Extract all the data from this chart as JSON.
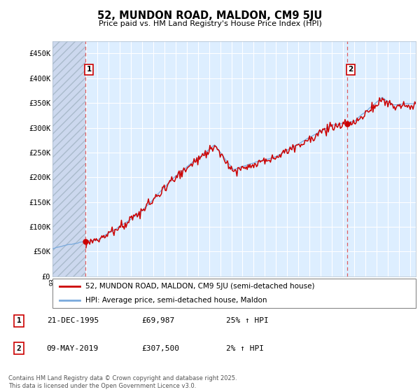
{
  "title": "52, MUNDON ROAD, MALDON, CM9 5JU",
  "subtitle": "Price paid vs. HM Land Registry's House Price Index (HPI)",
  "ylim": [
    0,
    475000
  ],
  "yticks": [
    0,
    50000,
    100000,
    150000,
    200000,
    250000,
    300000,
    350000,
    400000,
    450000
  ],
  "ytick_labels": [
    "£0",
    "£50K",
    "£100K",
    "£150K",
    "£200K",
    "£250K",
    "£300K",
    "£350K",
    "£400K",
    "£450K"
  ],
  "price_paid_color": "#cc0000",
  "hpi_color": "#7aaadd",
  "marker_color": "#cc0000",
  "vline_color": "#dd4444",
  "transaction1_date": 1995.97,
  "transaction1_price": 69987,
  "transaction2_date": 2019.36,
  "transaction2_price": 307500,
  "legend_line1": "52, MUNDON ROAD, MALDON, CM9 5JU (semi-detached house)",
  "legend_line2": "HPI: Average price, semi-detached house, Maldon",
  "annotation1_date": "21-DEC-1995",
  "annotation1_price": "£69,987",
  "annotation1_hpi": "25% ↑ HPI",
  "annotation2_date": "09-MAY-2019",
  "annotation2_price": "£307,500",
  "annotation2_hpi": "2% ↑ HPI",
  "footnote": "Contains HM Land Registry data © Crown copyright and database right 2025.\nThis data is licensed under the Open Government Licence v3.0.",
  "plot_bg_color": "#ddeeff",
  "grid_color": "#ffffff",
  "hatch_area_color": "#ccd8ee"
}
